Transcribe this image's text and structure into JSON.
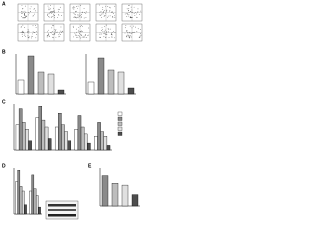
{
  "panel_a": {
    "label": "A",
    "rows": 2,
    "columns": 5
  },
  "chart_data": [
    {
      "type": "bar",
      "label": "B",
      "ylim": [
        0,
        1
      ],
      "values": [
        0.35,
        0.95,
        0.55,
        0.5,
        0.1
      ],
      "colors": [
        "#ffffff",
        "#8a8a8a",
        "#bdbdbd",
        "#e0e0e0",
        "#4d4d4d"
      ]
    },
    {
      "type": "bar",
      "ylim": [
        0,
        1
      ],
      "values": [
        0.3,
        0.9,
        0.6,
        0.55,
        0.15
      ],
      "colors": [
        "#ffffff",
        "#8a8a8a",
        "#bdbdbd",
        "#e0e0e0",
        "#4d4d4d"
      ]
    },
    {
      "type": "grouped-bar",
      "label": "C",
      "ylim": [
        0,
        1
      ],
      "series": [
        {
          "color": "#ffffff",
          "values": [
            0.55,
            0.7,
            0.5,
            0.45,
            0.3
          ]
        },
        {
          "color": "#8a8a8a",
          "values": [
            0.9,
            0.95,
            0.8,
            0.75,
            0.6
          ]
        },
        {
          "color": "#bdbdbd",
          "values": [
            0.6,
            0.65,
            0.55,
            0.5,
            0.4
          ]
        },
        {
          "color": "#e0e0e0",
          "values": [
            0.45,
            0.5,
            0.4,
            0.35,
            0.3
          ]
        },
        {
          "color": "#4d4d4d",
          "values": [
            0.2,
            0.25,
            0.2,
            0.15,
            0.1
          ]
        }
      ]
    },
    {
      "type": "grouped-bar",
      "label": "D",
      "ylim": [
        0,
        1
      ],
      "series": [
        {
          "color": "#ffffff",
          "values": [
            0.7,
            0.5
          ]
        },
        {
          "color": "#8a8a8a",
          "values": [
            0.95,
            0.85
          ]
        },
        {
          "color": "#bdbdbd",
          "values": [
            0.6,
            0.55
          ]
        },
        {
          "color": "#e0e0e0",
          "values": [
            0.5,
            0.4
          ]
        },
        {
          "color": "#4d4d4d",
          "values": [
            0.2,
            0.15
          ]
        }
      ]
    },
    {
      "type": "bar",
      "label": "E",
      "ylim": [
        0,
        1
      ],
      "values": [
        0.8,
        0.6,
        0.55,
        0.3
      ],
      "colors": [
        "#8a8a8a",
        "#bdbdbd",
        "#e0e0e0",
        "#4d4d4d"
      ]
    }
  ]
}
